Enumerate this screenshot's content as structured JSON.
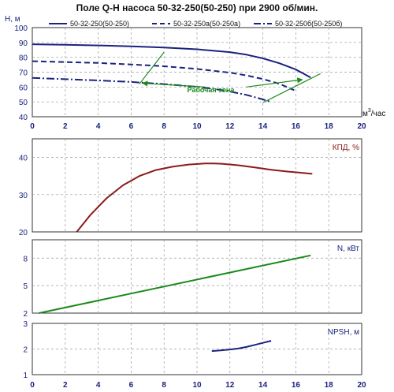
{
  "chart_data": {
    "title": "Поле Q-H насоса 50-32-250(50-250) при 2900 об/мин.",
    "x_ticks": [
      "0",
      "2",
      "4",
      "6",
      "8",
      "10",
      "12",
      "14",
      "16",
      "18",
      "20"
    ],
    "x_range": [
      0,
      20
    ],
    "x_unit_pre": "м",
    "x_unit_sup": "3",
    "x_unit_post": "/час",
    "grid": true,
    "legend_placement": "top",
    "colors": {
      "navy": "#1a237e",
      "darkred": "#8b1a1a",
      "green": "#1a8a1a"
    },
    "panels": [
      {
        "id": "qh",
        "type": "line",
        "ylabel": "Н, м",
        "ylim": [
          40,
          100
        ],
        "y_ticks": [
          "40",
          "50",
          "60",
          "70",
          "80",
          "90",
          "100"
        ],
        "series": [
          {
            "name": "50-32-250(50-250)",
            "style": "solid",
            "x": [
              0,
              2,
              4,
              6,
              8,
              10,
              12,
              13,
              14,
              15,
              16,
              16.9
            ],
            "y": [
              88.8,
              88.5,
              88.0,
              87.4,
              86.6,
              85.4,
              83.5,
              81.8,
              79.3,
              76.0,
              71.8,
              66.4
            ]
          },
          {
            "name": "50-32-250а(50-250а)",
            "style": "dashed",
            "x": [
              0,
              2,
              4,
              6,
              8,
              10,
              12,
              13,
              14,
              15,
              15.9
            ],
            "y": [
              77.4,
              76.8,
              76.2,
              75.2,
              74.0,
              72.2,
              69.7,
              67.8,
              65.4,
              62.2,
              57.9
            ]
          },
          {
            "name": "50-32-250б(50-250б)",
            "style": "dashdot",
            "x": [
              0,
              2,
              4,
              6,
              8,
              10,
              11,
              12,
              13,
              14,
              14.5
            ],
            "y": [
              66.1,
              65.3,
              64.4,
              63.4,
              62.0,
              60.1,
              58.8,
              57.0,
              54.7,
              51.7,
              49.9
            ]
          }
        ],
        "annotation": {
          "text": "Рабочая зона",
          "zone": [
            [
              8,
              83.5
            ],
            [
              17.5,
              69
            ],
            [
              14,
              49.5
            ],
            [
              6.5,
              62
            ]
          ]
        }
      },
      {
        "id": "eff",
        "type": "line",
        "ylabel": "КПД, %",
        "ylim": [
          20,
          45
        ],
        "y_ticks": [
          "20",
          "30",
          "40"
        ],
        "series": [
          {
            "name": "",
            "color": "darkred",
            "x": [
              2.7,
              3.5,
              4.5,
              5.5,
              6.5,
              7.5,
              8.5,
              9.5,
              10.5,
              11.0,
              11.5,
              12.5,
              13.5,
              14.5,
              15.5,
              16.5,
              17.0
            ],
            "y": [
              20.0,
              24.4,
              29.0,
              32.5,
              35.0,
              36.6,
              37.5,
              38.1,
              38.4,
              38.4,
              38.3,
              37.9,
              37.3,
              36.7,
              36.2,
              35.8,
              35.6
            ]
          }
        ]
      },
      {
        "id": "power",
        "type": "line",
        "ylabel": "N, кВт",
        "ylim": [
          2,
          10
        ],
        "y_ticks": [
          "2",
          "5",
          "8"
        ],
        "series": [
          {
            "name": "",
            "color": "green",
            "x": [
              0.4,
              16.9
            ],
            "y": [
              2.0,
              8.3
            ]
          }
        ]
      },
      {
        "id": "npsh",
        "type": "line",
        "ylabel": "NPSH, м",
        "ylim": [
          1,
          3
        ],
        "y_ticks": [
          "1",
          "2",
          "3"
        ],
        "series": [
          {
            "name": "",
            "color": "navy",
            "x": [
              10.9,
              11.5,
              12.0,
              12.5,
              13.0,
              13.5,
              14.0,
              14.5
            ],
            "y": [
              1.92,
              1.95,
              1.98,
              2.02,
              2.08,
              2.16,
              2.24,
              2.32
            ]
          }
        ]
      }
    ]
  }
}
